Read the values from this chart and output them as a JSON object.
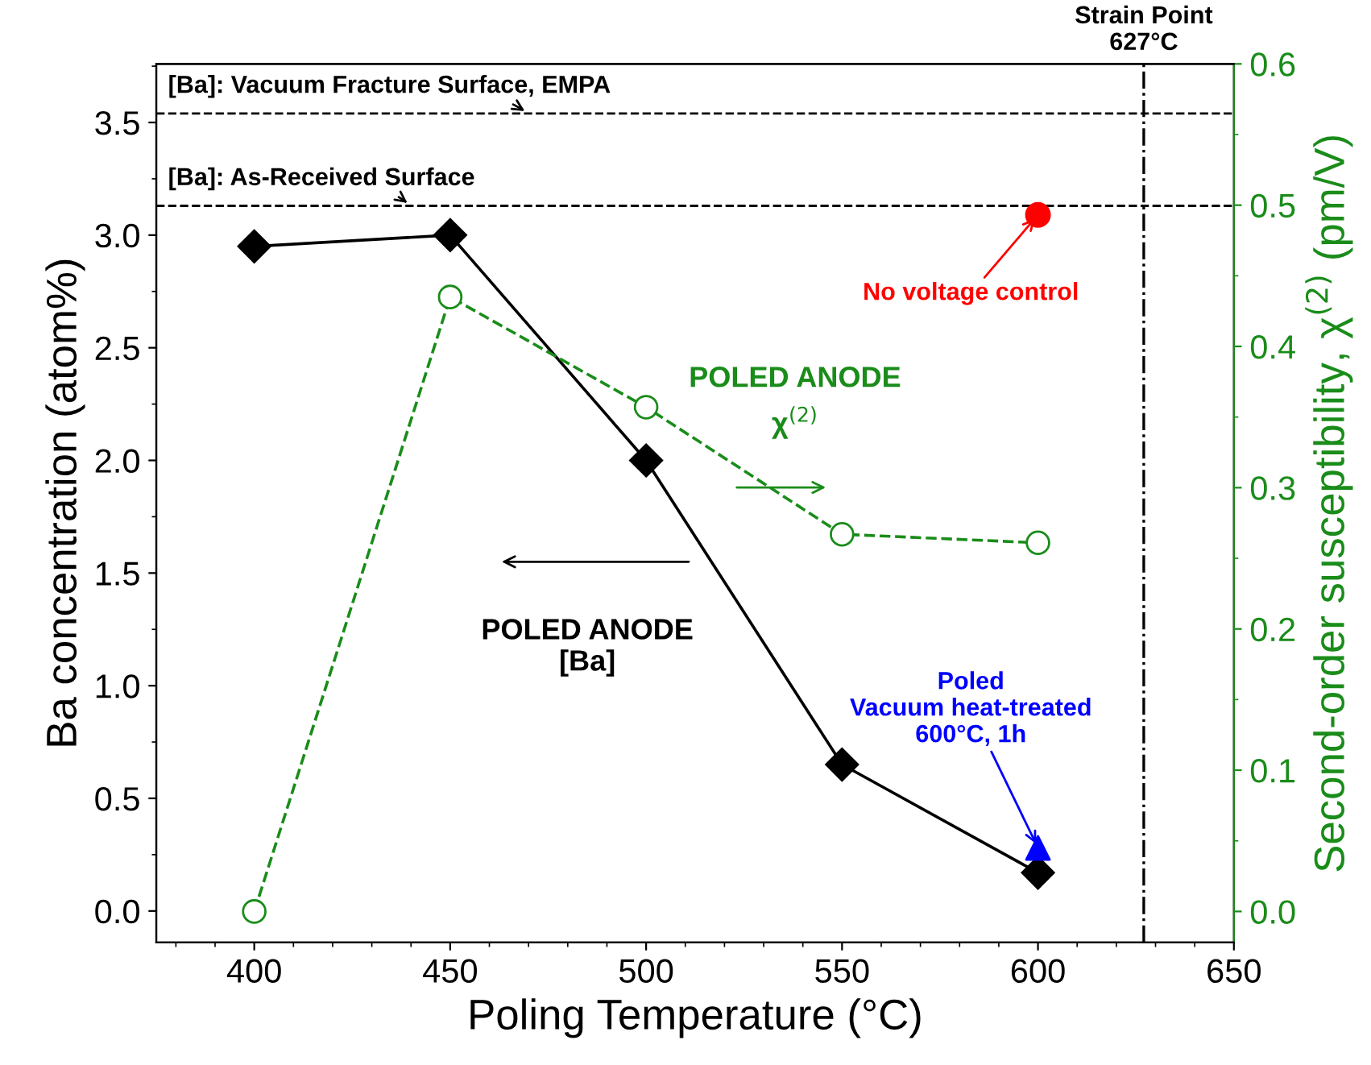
{
  "chart_data": {
    "type": "line",
    "xlabel": "Poling Temperature (°C)",
    "ylabel": "Ba concentration (atom%)",
    "y2label": "Second-order susceptibility, χ$^{(2)}$ (pm/V)",
    "x": [
      400,
      450,
      500,
      550,
      600
    ],
    "series": [
      {
        "color": "#000000",
        "axis": "y",
        "marker": "diamond",
        "line_style": "solid",
        "values": [
          2.95,
          3.0,
          2.0,
          0.65,
          0.17
        ]
      },
      {
        "color": "#1a8c1a",
        "axis": "y2",
        "marker": "circle",
        "line_style": "dashed",
        "values": [
          0.0,
          0.435,
          0.357,
          0.267,
          0.261
        ]
      },
      {
        "type": "scatter",
        "color": "#ff0000",
        "axis": "y",
        "marker": "circle",
        "x": [
          600
        ],
        "values": [
          3.09
        ]
      },
      {
        "type": "scatter",
        "color": "#0000ff",
        "axis": "y",
        "marker": "triangle",
        "x": [
          600
        ],
        "values": [
          0.28
        ]
      }
    ],
    "xlim": [
      375,
      650
    ],
    "xticks": [
      400,
      450,
      500,
      550,
      600,
      650
    ],
    "ylim": [
      -0.14,
      3.76
    ],
    "yticks": [
      {
        "value": 0,
        "label": "0.0"
      },
      0.5,
      {
        "value": 1,
        "label": "1.0"
      },
      1.5,
      {
        "value": 2,
        "label": "2.0"
      },
      2.5,
      {
        "value": 3,
        "label": "3.0"
      },
      3.5
    ],
    "y2lim": [
      -0.022,
      0.6
    ],
    "y2ticks": [
      {
        "value": 0,
        "label": "0.0"
      },
      0.1,
      0.2,
      0.3,
      0.4,
      0.5,
      0.6
    ],
    "ref_lines": [
      {
        "axis": "y",
        "value": 3.54,
        "label": "[Ba]: Vacuum Fracture Surface, EMPA",
        "color": "#000000",
        "line_style": "dashed"
      },
      {
        "axis": "y",
        "value": 3.13,
        "label": "[Ba]: As-Received Surface",
        "color": "#000000",
        "line_style": "dashed"
      },
      {
        "axis": "x",
        "value": 627,
        "label": "Strain Point\n627°C",
        "color": "#000000",
        "line_style": "dashdot"
      }
    ],
    "annotations": [
      {
        "text": "No voltage control",
        "x": 600,
        "y": 3.09
      },
      "POLED ANODE\nχ$^{(2)}$",
      "POLED ANODE\n[Ba]",
      {
        "text": "Poled\nVacuum heat-treated\n600°C, 1h",
        "x": 600,
        "y": 0.28
      }
    ],
    "grid": false
  }
}
